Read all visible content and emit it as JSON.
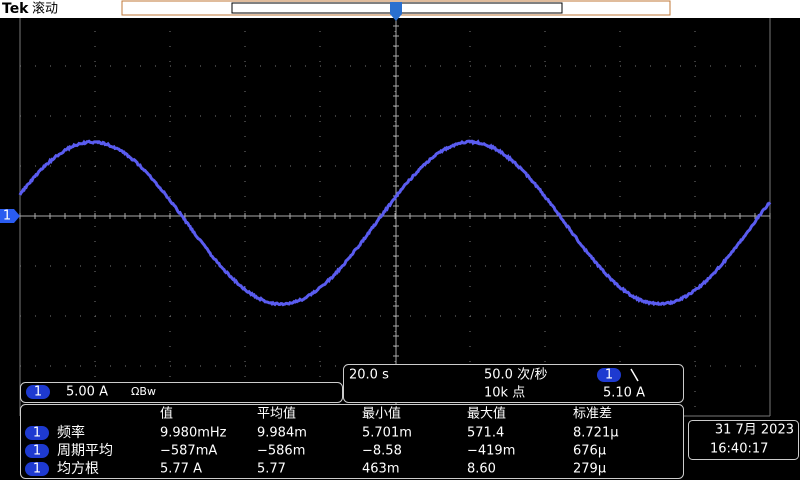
{
  "header": {
    "brand": "Tek",
    "mode": "滚动"
  },
  "ground_marker": "1",
  "channel": {
    "number": "1",
    "scale": "5.00 A",
    "bandwidth": "ΩBw"
  },
  "timebase": {
    "scale": "20.0 s",
    "rate": "50.0 次/秒",
    "points": "10k 点",
    "trigger_channel": "1",
    "trigger_level": "5.10 A"
  },
  "measurements": {
    "headers": [
      "值",
      "平均值",
      "最小值",
      "最大值",
      "标准差"
    ],
    "rows": [
      {
        "channel": "1",
        "name": "频率",
        "cells": [
          "9.980mHz",
          "9.984m",
          "5.701m",
          "571.4",
          "8.721μ"
        ]
      },
      {
        "channel": "1",
        "name": "周期平均",
        "cells": [
          "−587mA",
          "−586m",
          "−8.58",
          "−419m",
          "676μ"
        ]
      },
      {
        "channel": "1",
        "name": "均方根",
        "cells": [
          "5.77 A",
          "5.77",
          "463m",
          "8.60",
          "279μ"
        ]
      }
    ]
  },
  "datetime": {
    "date": "31 7月 2023",
    "time": "16:40:17"
  }
}
